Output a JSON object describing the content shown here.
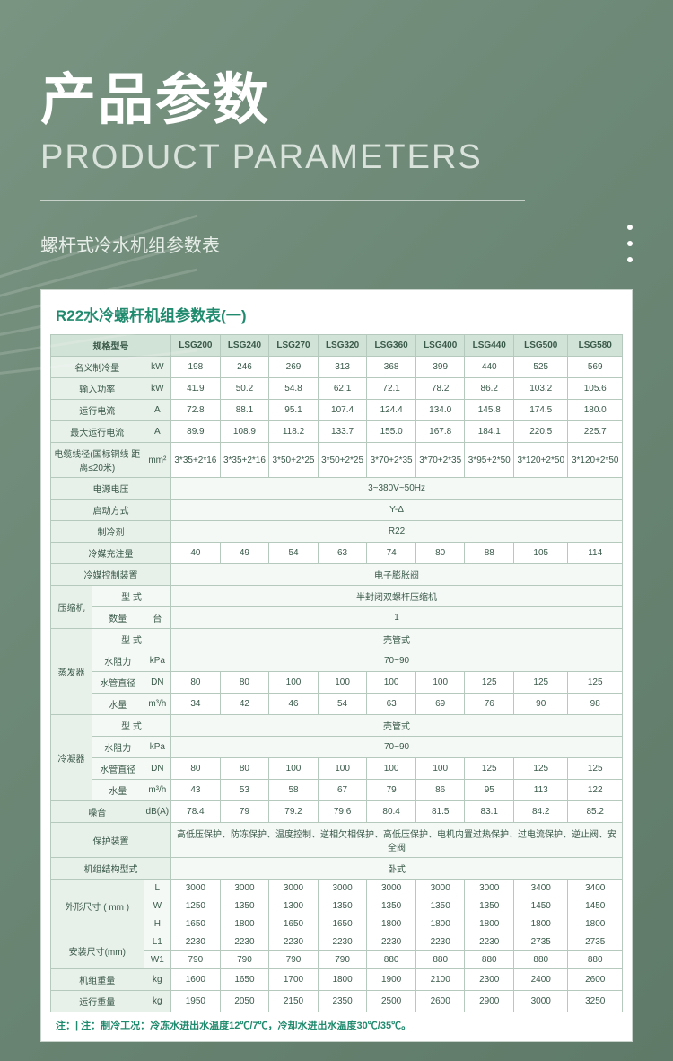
{
  "header": {
    "title_cn": "产品参数",
    "title_en": "PRODUCT PARAMETERS",
    "subtitle": "螺杆式冷水机组参数表"
  },
  "table": {
    "title": "R22水冷螺杆机组参数表(一)",
    "model_label": "规格型号",
    "models": [
      "LSG200",
      "LSG240",
      "LSG270",
      "LSG320",
      "LSG360",
      "LSG400",
      "LSG440",
      "LSG500",
      "LSG580"
    ],
    "rows_simple": [
      {
        "label": "名义制冷量",
        "unit": "kW",
        "vals": [
          "198",
          "246",
          "269",
          "313",
          "368",
          "399",
          "440",
          "525",
          "569"
        ]
      },
      {
        "label": "输入功率",
        "unit": "kW",
        "vals": [
          "41.9",
          "50.2",
          "54.8",
          "62.1",
          "72.1",
          "78.2",
          "86.2",
          "103.2",
          "105.6"
        ]
      },
      {
        "label": "运行电流",
        "unit": "A",
        "vals": [
          "72.8",
          "88.1",
          "95.1",
          "107.4",
          "124.4",
          "134.0",
          "145.8",
          "174.5",
          "180.0"
        ]
      },
      {
        "label": "最大运行电流",
        "unit": "A",
        "vals": [
          "89.9",
          "108.9",
          "118.2",
          "133.7",
          "155.0",
          "167.8",
          "184.1",
          "220.5",
          "225.7"
        ]
      },
      {
        "label": "电缆线径(国标铜线 距离≤20米)",
        "unit": "mm²",
        "vals": [
          "3*35+2*16",
          "3*35+2*16",
          "3*50+2*25",
          "3*50+2*25",
          "3*70+2*35",
          "3*70+2*35",
          "3*95+2*50",
          "3*120+2*50",
          "3*120+2*50"
        ]
      }
    ],
    "span_rows": [
      {
        "label": "电源电压",
        "val": "3~380V~50Hz"
      },
      {
        "label": "启动方式",
        "val": "Y-Δ"
      },
      {
        "label": "制冷剂",
        "val": "R22"
      }
    ],
    "refrigerant_charge": {
      "label": "冷媒充注量",
      "vals": [
        "40",
        "49",
        "54",
        "63",
        "74",
        "80",
        "88",
        "105",
        "114"
      ]
    },
    "control_row": {
      "label": "冷媒控制装置",
      "val": "电子膨胀阀"
    },
    "compressor": {
      "group": "压缩机",
      "type_label": "型 式",
      "type_val": "半封闭双螺杆压缩机",
      "qty_label": "数量",
      "qty_unit": "台",
      "qty_val": "1"
    },
    "evaporator": {
      "group": "蒸发器",
      "type_label": "型 式",
      "type_val": "壳管式",
      "dp_label": "水阻力",
      "dp_unit": "kPa",
      "dp_val": "70~90",
      "pipe_label": "水管直径",
      "pipe_unit": "DN",
      "pipe_vals": [
        "80",
        "80",
        "100",
        "100",
        "100",
        "100",
        "125",
        "125",
        "125"
      ],
      "flow_label": "水量",
      "flow_unit": "m³/h",
      "flow_vals": [
        "34",
        "42",
        "46",
        "54",
        "63",
        "69",
        "76",
        "90",
        "98"
      ]
    },
    "condenser": {
      "group": "冷凝器",
      "type_label": "型 式",
      "type_val": "壳管式",
      "dp_label": "水阻力",
      "dp_unit": "kPa",
      "dp_val": "70~90",
      "pipe_label": "水管直径",
      "pipe_unit": "DN",
      "pipe_vals": [
        "80",
        "80",
        "100",
        "100",
        "100",
        "100",
        "125",
        "125",
        "125"
      ],
      "flow_label": "水量",
      "flow_unit": "m³/h",
      "flow_vals": [
        "43",
        "53",
        "58",
        "67",
        "79",
        "86",
        "95",
        "113",
        "122"
      ]
    },
    "noise": {
      "label": "噪音",
      "unit": "dB(A)",
      "vals": [
        "78.4",
        "79",
        "79.2",
        "79.6",
        "80.4",
        "81.5",
        "83.1",
        "84.2",
        "85.2"
      ]
    },
    "protection": {
      "label": "保护装置",
      "val": "高低压保护、防冻保护、温度控制、逆相欠相保护、高低压保护、电机内置过热保护、过电流保护、逆止阀、安全阀"
    },
    "structure": {
      "label": "机组结构型式",
      "val": "卧式"
    },
    "dims": {
      "group": "外形尺寸\n( mm )",
      "L": {
        "label": "L",
        "vals": [
          "3000",
          "3000",
          "3000",
          "3000",
          "3000",
          "3000",
          "3000",
          "3400",
          "3400"
        ]
      },
      "W": {
        "label": "W",
        "vals": [
          "1250",
          "1350",
          "1300",
          "1350",
          "1350",
          "1350",
          "1350",
          "1450",
          "1450"
        ]
      },
      "H": {
        "label": "H",
        "vals": [
          "1650",
          "1800",
          "1650",
          "1650",
          "1800",
          "1800",
          "1800",
          "1800",
          "1800"
        ]
      }
    },
    "install": {
      "group": "安装尺寸(mm)",
      "L1": {
        "label": "L1",
        "vals": [
          "2230",
          "2230",
          "2230",
          "2230",
          "2230",
          "2230",
          "2230",
          "2735",
          "2735"
        ]
      },
      "W1": {
        "label": "W1",
        "vals": [
          "790",
          "790",
          "790",
          "790",
          "880",
          "880",
          "880",
          "880",
          "880"
        ]
      }
    },
    "ship_wt": {
      "label": "机组重量",
      "unit": "kg",
      "vals": [
        "1600",
        "1650",
        "1700",
        "1800",
        "1900",
        "2100",
        "2300",
        "2400",
        "2600"
      ]
    },
    "run_wt": {
      "label": "运行重量",
      "unit": "kg",
      "vals": [
        "1950",
        "2050",
        "2150",
        "2350",
        "2500",
        "2600",
        "2900",
        "3000",
        "3250"
      ]
    },
    "footnote": "注：| 注：制冷工况：冷冻水进出水温度12℃/7℃，冷却水进出水温度30℃/35℃。"
  },
  "colors": {
    "bg_grad_start": "#7a9482",
    "bg_grad_end": "#5f7a68",
    "hdr": "#d1e2d6",
    "hdr_lt": "#e8f0ea",
    "label_lt": "#f5f9f6",
    "border": "#b5c9bc",
    "accent": "#1f8a6d",
    "text": "#3a5a4a"
  }
}
